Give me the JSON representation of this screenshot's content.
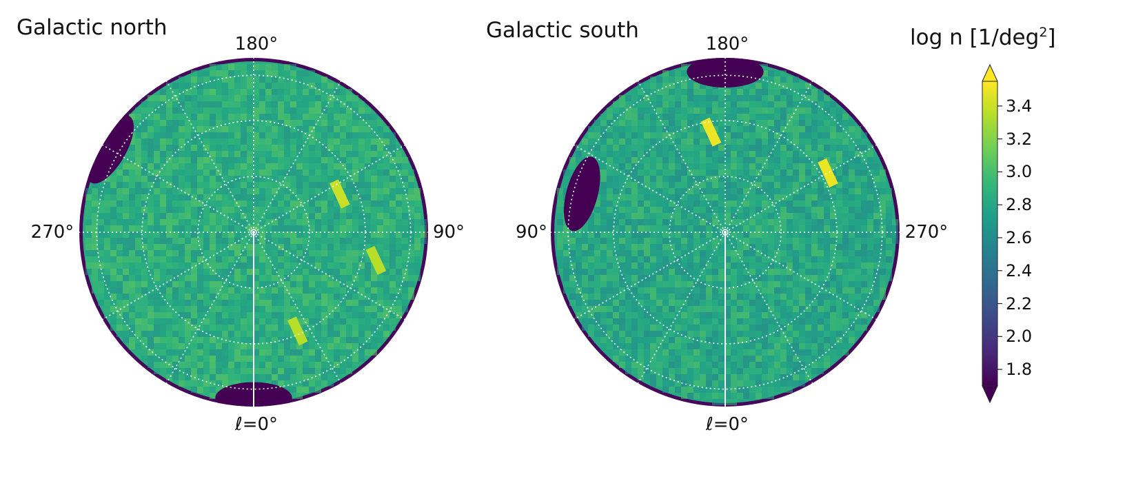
{
  "chart_data": [
    {
      "type": "heatmap",
      "projection": "polar",
      "title": "Galactic north",
      "angle_labels": {
        "top": "180°",
        "bottom": "ℓ=0°",
        "left": "270°",
        "right": "90°"
      },
      "value_range": [
        1.7,
        3.55
      ],
      "grid": true,
      "mean_value": 2.85,
      "high_regions": [
        {
          "l_deg": 283,
          "r_frac": 0.72,
          "value": 3.35
        },
        {
          "l_deg": 246,
          "r_frac": 0.54,
          "value": 3.4
        },
        {
          "l_deg": 336,
          "r_frac": 0.62,
          "value": 3.35
        }
      ],
      "low_regions": [
        {
          "l_deg": 120,
          "r_frac": 0.95,
          "value": 1.7
        },
        {
          "l_deg": 0,
          "r_frac": 0.95,
          "value": 1.7
        }
      ]
    },
    {
      "type": "heatmap",
      "projection": "polar",
      "title": "Galactic south",
      "angle_labels": {
        "top": "180°",
        "bottom": "ℓ=0°",
        "left": "90°",
        "right": "270°"
      },
      "value_range": [
        1.7,
        3.55
      ],
      "grid": true,
      "mean_value": 2.8,
      "high_regions": [
        {
          "l_deg": 120,
          "r_frac": 0.68,
          "value": 3.5
        },
        {
          "l_deg": 188,
          "r_frac": 0.58,
          "value": 3.5
        }
      ],
      "low_regions": [
        {
          "l_deg": 180,
          "r_frac": 0.92,
          "value": 1.7
        },
        {
          "l_deg": 255,
          "r_frac": 0.85,
          "value": 1.7
        }
      ]
    }
  ],
  "colorbar": {
    "title_prefix": "log n [1/deg",
    "title_sup": "2",
    "title_suffix": "]",
    "ticks": [
      "1.8",
      "2.0",
      "2.2",
      "2.4",
      "2.6",
      "2.8",
      "3.0",
      "3.2",
      "3.4"
    ],
    "tick_values": [
      1.8,
      2.0,
      2.2,
      2.4,
      2.6,
      2.8,
      3.0,
      3.2,
      3.4
    ],
    "range": [
      1.7,
      3.55
    ],
    "extend": "both",
    "colormap": "viridis"
  },
  "colors": {
    "viridis_stops": [
      "#440154",
      "#482878",
      "#3e4989",
      "#31688e",
      "#26828e",
      "#1f9e89",
      "#35b779",
      "#6ece58",
      "#b5de2b",
      "#fde725"
    ]
  }
}
